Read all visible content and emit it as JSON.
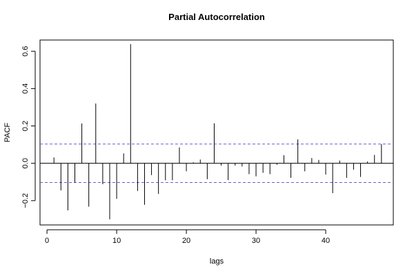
{
  "chart_data": {
    "type": "bar",
    "title": "Partial Autocorrelation",
    "xlabel": "lags",
    "ylabel": "PACF",
    "xlim": [
      -1,
      49.7
    ],
    "ylim": [
      -0.33,
      0.66
    ],
    "x_ticks": [
      0,
      10,
      20,
      30,
      40
    ],
    "y_ticks": [
      -0.2,
      0.0,
      0.2,
      0.4,
      0.6
    ],
    "y_tick_labels": [
      "−0.2",
      "0.0",
      "0.2",
      "0.4",
      "0.6"
    ],
    "x_tick_labels": [
      "0",
      "10",
      "20",
      "30",
      "40"
    ],
    "ci_bounds": [
      0.103,
      -0.103
    ],
    "ci_color": "#6a5acd",
    "grid": false,
    "series": [
      {
        "lags": [
          1,
          2,
          3,
          4,
          5,
          6,
          7,
          8,
          9,
          10,
          11,
          12,
          13,
          14,
          15,
          16,
          17,
          18,
          19,
          20,
          21,
          22,
          23,
          24,
          25,
          26,
          27,
          28,
          29,
          30,
          31,
          32,
          33,
          34,
          35,
          36,
          37,
          38,
          39,
          40,
          41,
          42,
          43,
          44,
          45,
          46,
          47,
          48
        ],
        "values": [
          0.031,
          -0.145,
          -0.252,
          -0.103,
          0.213,
          -0.232,
          0.32,
          -0.112,
          -0.3,
          -0.19,
          0.053,
          0.638,
          -0.148,
          -0.222,
          -0.063,
          -0.164,
          -0.091,
          -0.091,
          0.085,
          -0.043,
          0.005,
          0.02,
          -0.085,
          0.214,
          -0.012,
          -0.09,
          -0.012,
          -0.017,
          -0.058,
          -0.07,
          -0.051,
          -0.058,
          -0.008,
          0.043,
          -0.078,
          0.128,
          -0.043,
          0.028,
          0.018,
          -0.06,
          -0.16,
          0.015,
          -0.078,
          -0.034,
          -0.073,
          0.01,
          0.045,
          0.103
        ]
      }
    ]
  }
}
